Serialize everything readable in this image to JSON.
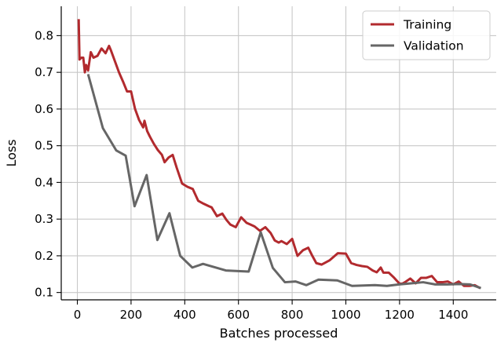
{
  "chart_data": {
    "type": "line",
    "title": "",
    "xlabel": "Batches processed",
    "ylabel": "Loss",
    "xlim": [
      -60,
      1560
    ],
    "ylim": [
      0.08,
      0.88
    ],
    "xticks": [
      0,
      200,
      400,
      600,
      800,
      1000,
      1200,
      1400
    ],
    "yticks": [
      0.1,
      0.2,
      0.3,
      0.4,
      0.5,
      0.6,
      0.7,
      0.8
    ],
    "grid": true,
    "legend_position": "top-right",
    "series": [
      {
        "name": "Training",
        "color": "#b22a2e",
        "x": [
          5,
          8,
          15,
          22,
          28,
          33,
          40,
          50,
          60,
          75,
          90,
          105,
          118,
          125,
          140,
          155,
          170,
          185,
          200,
          215,
          230,
          245,
          250,
          260,
          270,
          285,
          300,
          315,
          325,
          340,
          355,
          370,
          390,
          410,
          430,
          450,
          470,
          490,
          500,
          520,
          540,
          555,
          570,
          590,
          610,
          630,
          645,
          660,
          680,
          700,
          720,
          735,
          750,
          760,
          780,
          800,
          820,
          840,
          860,
          875,
          890,
          910,
          940,
          970,
          1000,
          1020,
          1040,
          1060,
          1080,
          1100,
          1115,
          1130,
          1140,
          1160,
          1180,
          1200,
          1210,
          1220,
          1240,
          1260,
          1280,
          1300,
          1320,
          1340,
          1360,
          1380,
          1400,
          1420,
          1440,
          1460,
          1480,
          1500
        ],
        "values": [
          0.845,
          0.735,
          0.74,
          0.74,
          0.7,
          0.72,
          0.705,
          0.755,
          0.74,
          0.745,
          0.765,
          0.752,
          0.772,
          0.76,
          0.73,
          0.7,
          0.675,
          0.648,
          0.648,
          0.6,
          0.57,
          0.55,
          0.568,
          0.54,
          0.525,
          0.505,
          0.488,
          0.475,
          0.455,
          0.468,
          0.475,
          0.44,
          0.397,
          0.388,
          0.382,
          0.35,
          0.342,
          0.335,
          0.332,
          0.308,
          0.315,
          0.298,
          0.285,
          0.278,
          0.305,
          0.29,
          0.285,
          0.28,
          0.268,
          0.278,
          0.262,
          0.242,
          0.236,
          0.24,
          0.232,
          0.246,
          0.2,
          0.215,
          0.222,
          0.2,
          0.18,
          0.176,
          0.188,
          0.207,
          0.206,
          0.18,
          0.175,
          0.172,
          0.17,
          0.16,
          0.155,
          0.168,
          0.154,
          0.154,
          0.14,
          0.124,
          0.124,
          0.128,
          0.138,
          0.125,
          0.14,
          0.14,
          0.145,
          0.128,
          0.128,
          0.13,
          0.122,
          0.13,
          0.118,
          0.118,
          0.12,
          0.112
        ]
      },
      {
        "name": "Validation",
        "color": "#666666",
        "x": [
          40,
          95,
          145,
          180,
          213,
          258,
          298,
          343,
          383,
          428,
          468,
          553,
          638,
          683,
          728,
          773,
          813,
          853,
          898,
          968,
          1023,
          1108,
          1153,
          1198,
          1243,
          1288,
          1333,
          1378,
          1423,
          1463,
          1503
        ],
        "values": [
          0.695,
          0.548,
          0.487,
          0.473,
          0.335,
          0.42,
          0.243,
          0.316,
          0.2,
          0.168,
          0.178,
          0.16,
          0.157,
          0.264,
          0.167,
          0.128,
          0.13,
          0.12,
          0.135,
          0.133,
          0.118,
          0.12,
          0.118,
          0.122,
          0.125,
          0.128,
          0.122,
          0.122,
          0.123,
          0.122,
          0.112
        ]
      }
    ]
  }
}
